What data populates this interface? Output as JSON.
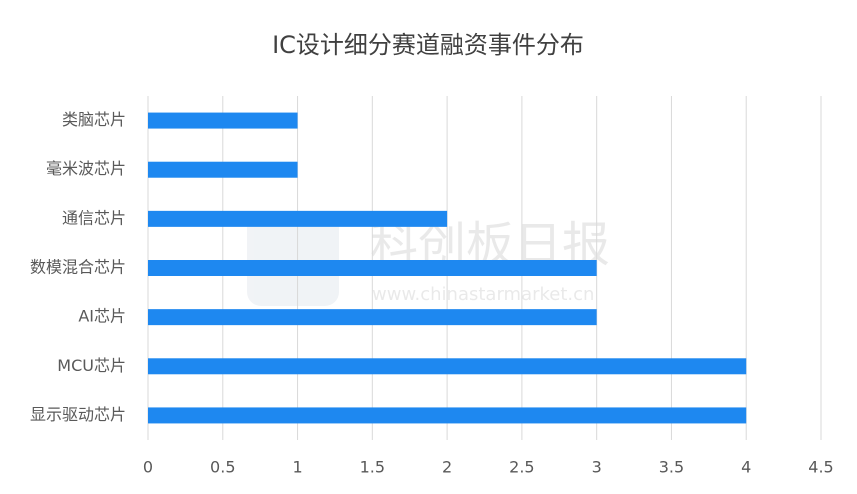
{
  "chart_data": {
    "type": "bar",
    "orientation": "horizontal",
    "title": "IC设计细分赛道融资事件分布",
    "categories": [
      "类脑芯片",
      "毫米波芯片",
      "通信芯片",
      "数模混合芯片",
      "AI芯片",
      "MCU芯片",
      "显示驱动芯片"
    ],
    "values": [
      1,
      1,
      2,
      3,
      3,
      4,
      4
    ],
    "color": "#1e88f0",
    "xlim": [
      0,
      4.5
    ],
    "xticks": [
      0,
      0.5,
      1,
      1.5,
      2,
      2.5,
      3,
      3.5,
      4,
      4.5
    ],
    "grid": true
  },
  "watermark": {
    "text": "科创板日报",
    "url": "www.chinastarmarket.cn"
  }
}
